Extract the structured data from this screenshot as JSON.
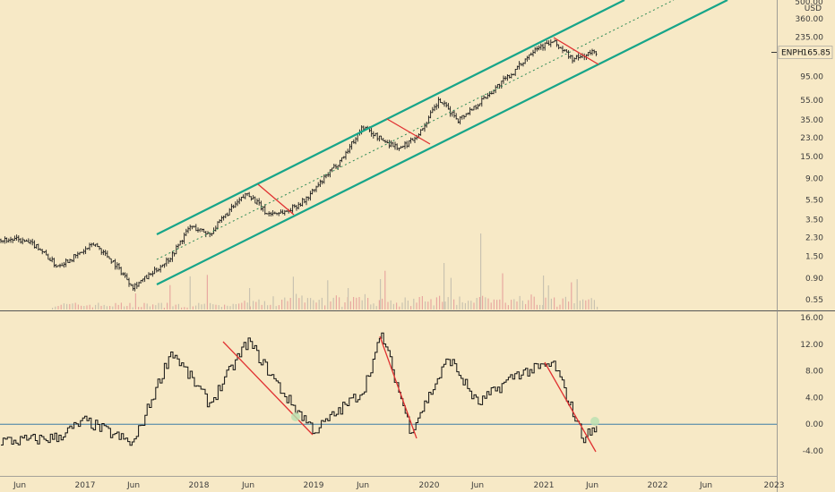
{
  "chart": {
    "symbol": "ENPH",
    "last_price": "165.85",
    "currency": "USD"
  },
  "colors": {
    "background": "#f7e9c6",
    "candle": "#1c1c1c",
    "channel": "#17a589",
    "channel_mid": "#2e8b57",
    "trend_red": "#e03131",
    "zero_line": "#3d7ea6",
    "separator": "#555555",
    "volume_up": "#c9c2b0",
    "volume_down": "#e8a8a0",
    "circle": "#b8e0b0"
  },
  "chart_data": [
    {
      "type": "candlestick",
      "scale": "log",
      "price_axis_ticks": [
        "360.00",
        "235.00",
        "160.00",
        "95.00",
        "55.00",
        "35.00",
        "23.00",
        "15.00",
        "9.00",
        "5.50",
        "3.50",
        "2.30",
        "1.50",
        "0.90",
        "0.55"
      ],
      "price_axis_top_label": "500.00",
      "x_axis_ticks": [
        "Jun",
        "2017",
        "Jun",
        "2018",
        "Jun",
        "2019",
        "Jun",
        "2020",
        "Jun",
        "2021",
        "Jun",
        "2022",
        "Jun",
        "2023"
      ],
      "ylim": [
        0.45,
        500
      ],
      "series": [
        {
          "x": [
            "2016-06",
            "2016-08",
            "2016-10",
            "2016-12",
            "2017-02",
            "2017-04",
            "2017-06",
            "2017-08",
            "2017-10",
            "2017-12",
            "2018-02",
            "2018-04",
            "2018-06",
            "2018-08",
            "2018-10",
            "2018-12",
            "2019-02",
            "2019-04",
            "2019-06",
            "2019-08",
            "2019-10",
            "2019-12",
            "2020-02",
            "2020-04",
            "2020-06",
            "2020-08",
            "2020-10",
            "2020-12",
            "2021-02",
            "2021-04",
            "2021-06"
          ],
          "values": [
            2.2,
            1.9,
            1.2,
            1.5,
            2.0,
            1.3,
            0.75,
            1.0,
            1.5,
            3.0,
            2.5,
            4.2,
            6.5,
            4.0,
            4.2,
            5.5,
            9.0,
            15.0,
            30.0,
            22.0,
            18.0,
            26.0,
            55.0,
            35.0,
            50.0,
            75.0,
            110.0,
            185.0,
            210.0,
            140.0,
            165.85
          ]
        }
      ],
      "annotations": [
        "ascending channel (teal)",
        "downtrend lines (red)",
        "dotted mid-channel line"
      ]
    },
    {
      "type": "line",
      "y_ticks": [
        "16.00",
        "12.00",
        "8.00",
        "4.00",
        "0.00",
        "-4.00"
      ],
      "ylim": [
        -6,
        16
      ],
      "series": [
        {
          "x": [
            "2016-06",
            "2016-10",
            "2017-01",
            "2017-06",
            "2017-10",
            "2018-02",
            "2018-06",
            "2018-10",
            "2019-01",
            "2019-06",
            "2019-08",
            "2019-11",
            "2020-03",
            "2020-06",
            "2020-10",
            "2021-02",
            "2021-05",
            "2021-07"
          ],
          "values": [
            -2.5,
            -2.0,
            0.5,
            -3.0,
            11.0,
            3.0,
            12.5,
            4.0,
            -1.0,
            5.0,
            13.5,
            -1.0,
            10.0,
            3.0,
            7.5,
            9.0,
            -2.0,
            0.0
          ]
        }
      ]
    }
  ]
}
